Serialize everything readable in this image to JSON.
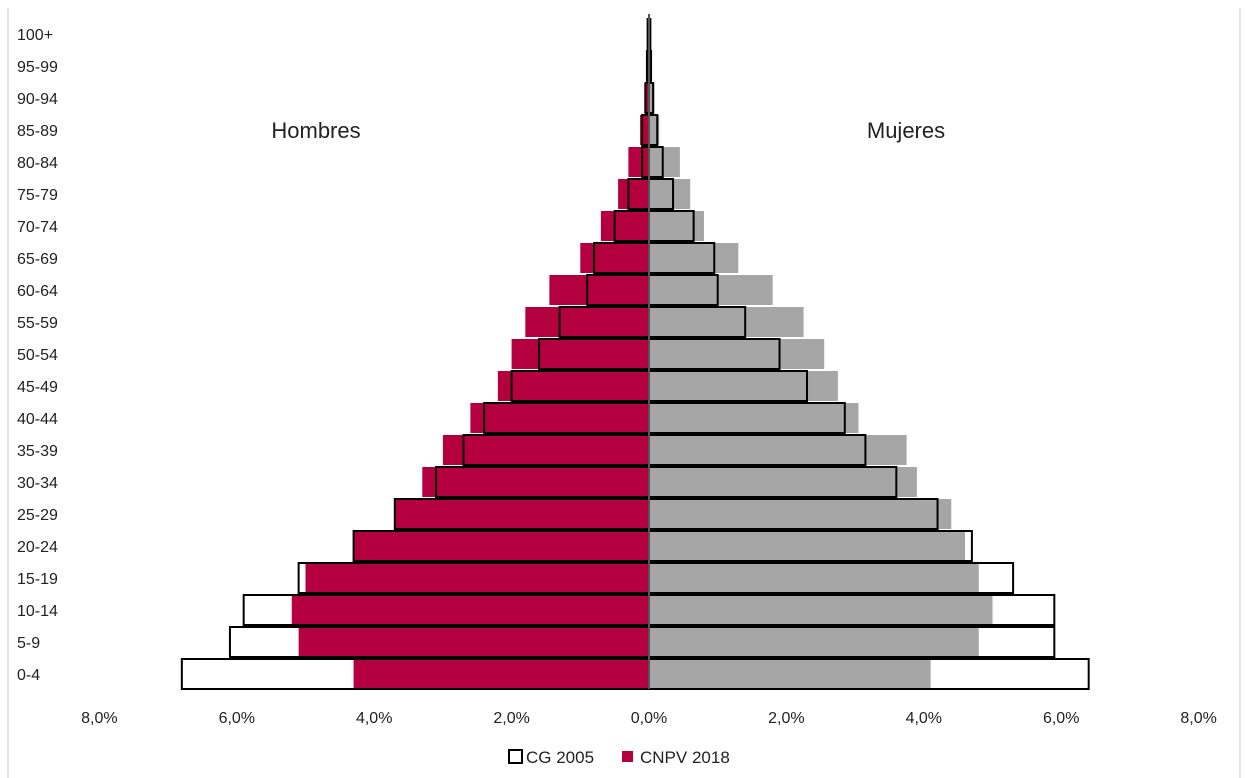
{
  "chart_data": {
    "type": "bar",
    "orientation": "horizontal-population-pyramid",
    "categories": [
      "0-4",
      "5-9",
      "10-14",
      "15-19",
      "20-24",
      "25-29",
      "30-34",
      "35-39",
      "40-44",
      "45-49",
      "50-54",
      "55-59",
      "60-64",
      "65-69",
      "70-74",
      "75-79",
      "80-84",
      "85-89",
      "90-94",
      "95-99",
      "100+"
    ],
    "side_labels": {
      "left": "Hombres",
      "right": "Mujeres"
    },
    "series": [
      {
        "name": "CG 2005",
        "style": "outline",
        "color": "#ffffff",
        "stroke": "#000000",
        "hombres": [
          6.8,
          6.1,
          5.9,
          5.1,
          4.3,
          3.7,
          3.1,
          2.7,
          2.4,
          2.0,
          1.6,
          1.3,
          0.9,
          0.8,
          0.5,
          0.3,
          0.1,
          0.1,
          0.05,
          0.03,
          0.02
        ],
        "mujeres": [
          6.4,
          5.9,
          5.9,
          5.3,
          4.7,
          4.2,
          3.6,
          3.15,
          2.85,
          2.3,
          1.9,
          1.4,
          1.0,
          0.95,
          0.65,
          0.35,
          0.2,
          0.12,
          0.06,
          0.03,
          0.02
        ]
      },
      {
        "name": "CNPV 2018",
        "style": "filled",
        "color_hombres": "#b5003f",
        "color_mujeres": "#a6a6a6",
        "hombres": [
          4.3,
          5.1,
          5.2,
          5.0,
          4.3,
          3.7,
          3.3,
          3.0,
          2.6,
          2.2,
          2.0,
          1.8,
          1.45,
          1.0,
          0.7,
          0.45,
          0.3,
          0.13,
          0.07,
          0.04,
          0.02
        ],
        "mujeres": [
          4.1,
          4.8,
          5.0,
          4.8,
          4.6,
          4.4,
          3.9,
          3.75,
          3.05,
          2.75,
          2.55,
          2.25,
          1.8,
          1.3,
          0.8,
          0.6,
          0.45,
          0.15,
          0.08,
          0.04,
          0.02
        ]
      }
    ],
    "x_ticks": [
      "8,0%",
      "6,0%",
      "4,0%",
      "2,0%",
      "0,0%",
      "2,0%",
      "4,0%",
      "6,0%",
      "8,0%"
    ],
    "xlim": [
      -8,
      8
    ],
    "legend": {
      "position": "bottom-center",
      "items": [
        "CG 2005",
        "CNPV 2018"
      ]
    },
    "grid": false
  }
}
